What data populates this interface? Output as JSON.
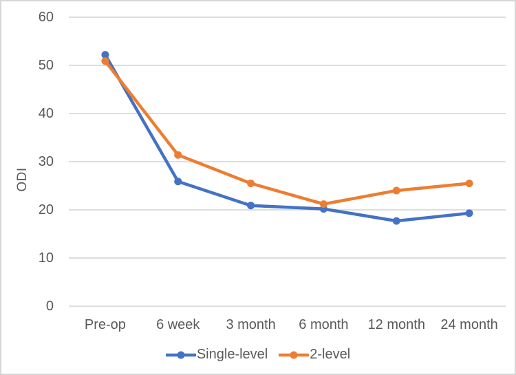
{
  "chart_data": {
    "type": "line",
    "title": "",
    "xlabel": "",
    "ylabel": "ODI",
    "ylim": [
      0,
      60
    ],
    "ytick_step": 10,
    "yticks": [
      0,
      10,
      20,
      30,
      40,
      50,
      60
    ],
    "categories": [
      "Pre-op",
      "6 week",
      "3 month",
      "6 month",
      "12 month",
      "24 month"
    ],
    "series": [
      {
        "name": "Single-level",
        "color": "#4472C4",
        "values": [
          52.2,
          25.9,
          20.9,
          20.2,
          17.7,
          19.3
        ]
      },
      {
        "name": "2-level",
        "color": "#ED7D31",
        "values": [
          50.9,
          31.4,
          25.5,
          21.2,
          24.0,
          25.5
        ]
      }
    ],
    "grid": "horizontal-only",
    "legend_position": "bottom",
    "marker": "circle"
  },
  "styles": {
    "background": "#FFFFFF",
    "border_color": "#D6D6D6",
    "gridline_color": "#D9D9D9",
    "text_color": "#595959"
  }
}
